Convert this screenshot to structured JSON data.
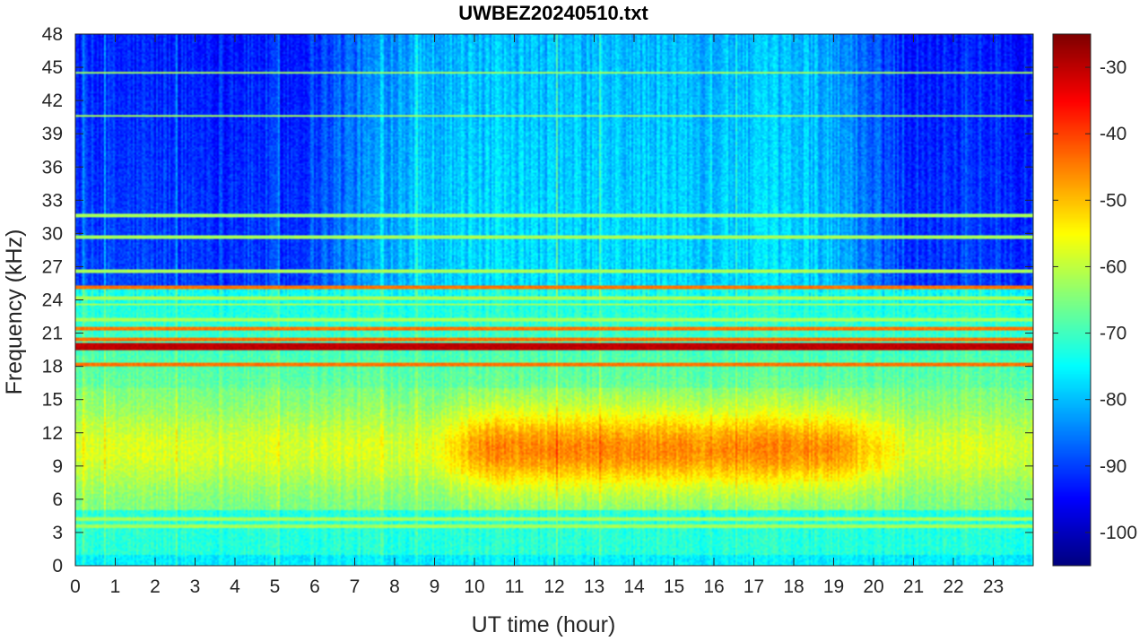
{
  "chart_data": {
    "type": "heatmap",
    "title": "UWBEZ20240510.txt",
    "xlabel": "UT time (hour)",
    "ylabel": "Frequency (kHz)",
    "xlim": [
      0,
      24
    ],
    "ylim": [
      0,
      48
    ],
    "x_ticks": [
      0,
      1,
      2,
      3,
      4,
      5,
      6,
      7,
      8,
      9,
      10,
      11,
      12,
      13,
      14,
      15,
      16,
      17,
      18,
      19,
      20,
      21,
      22,
      23
    ],
    "y_ticks": [
      0,
      3,
      6,
      9,
      12,
      15,
      18,
      21,
      24,
      27,
      30,
      33,
      36,
      39,
      42,
      45,
      48
    ],
    "colorbar": {
      "range": [
        -105,
        -25
      ],
      "ticks": [
        -100,
        -90,
        -80,
        -70,
        -60,
        -50,
        -40,
        -30
      ],
      "colormap": "jet"
    },
    "grid": false,
    "features": {
      "strong_lines_khz": [
        19.8,
        21.4,
        18.2,
        25.1,
        20.5
      ],
      "weak_lines_khz": [
        24.2,
        22.2,
        23.6,
        26.6,
        29.7,
        31.6,
        40.6,
        44.5,
        8.2,
        4.2,
        3.6
      ],
      "band_peak": {
        "f_min": 6,
        "f_max": 16,
        "t_min": 8.8,
        "t_max": 21,
        "level": -50
      }
    }
  }
}
